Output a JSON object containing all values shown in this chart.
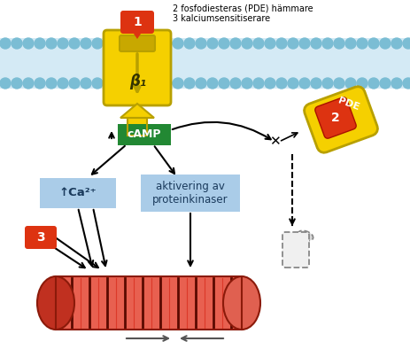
{
  "text_top_right_line1": "2 fosfodiesteras (PDE) hämmare",
  "text_top_right_line2": "3 kalciumsensitiserare",
  "membrane_color": "#7bbdd4",
  "membrane_lipid_color": "#d4eaf5",
  "receptor_color": "#f5d000",
  "receptor_edge": "#b8a000",
  "receptor_label": "β₁",
  "label1_color": "#dd3311",
  "label1_text": "1",
  "label2_color": "#dd3311",
  "label2_text": "2",
  "label3_color": "#dd3311",
  "label3_text": "3",
  "camp_box_color": "#228833",
  "camp_text": "cAMP",
  "ca_box_color": "#aacce8",
  "ca_text": "↑Ca²⁺",
  "pk_box_color": "#aacce8",
  "pk_text": "aktivering av\nproteinkinaser",
  "pde_outer_color": "#f5d000",
  "pde_inner_color": "#dd3311",
  "pde_text": "PDE",
  "muscle_color_outer": "#d42010",
  "muscle_color_inner": "#e86050",
  "muscle_color_dark": "#5a0a00",
  "muscle_color_stripe": "#c03020",
  "bg_color": "#ffffff"
}
